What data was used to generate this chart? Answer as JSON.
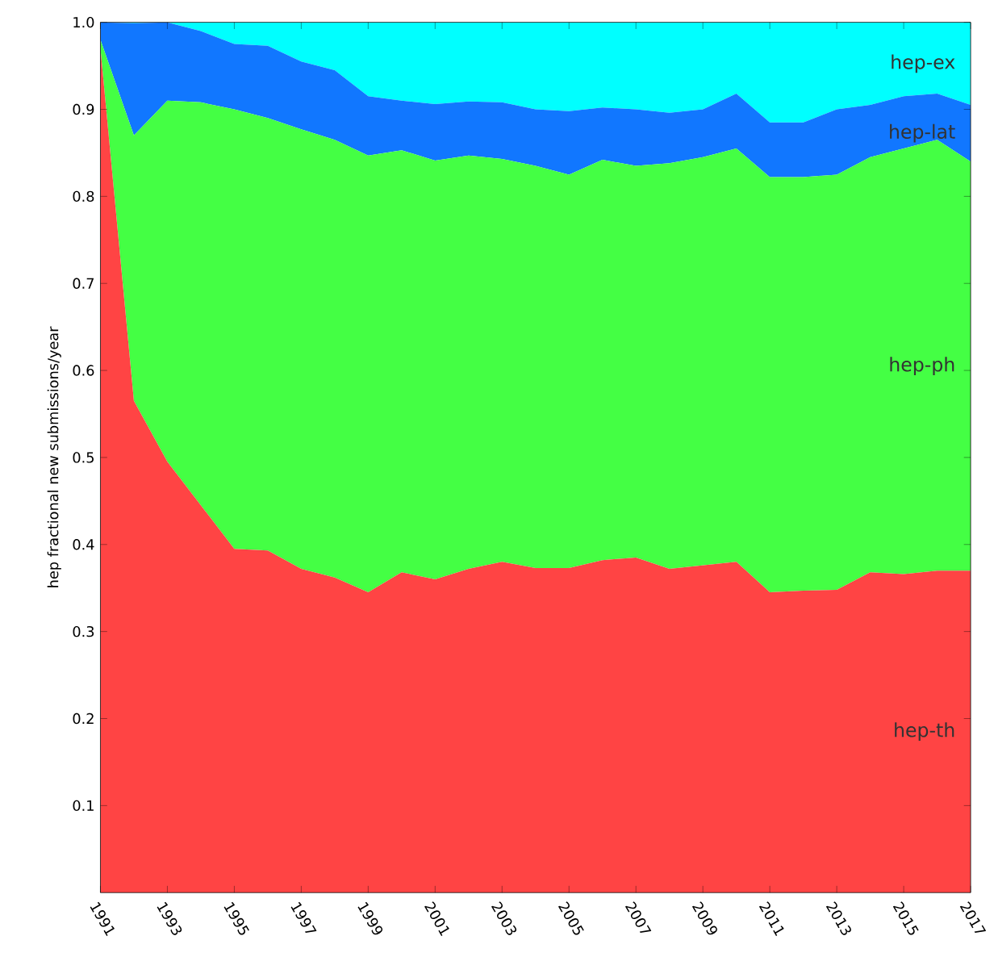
{
  "chart_data": {
    "type": "area",
    "stacked": true,
    "ylabel": "hep fractional new submissions/year",
    "x": [
      1991,
      1992,
      1993,
      1994,
      1995,
      1996,
      1997,
      1998,
      1999,
      2000,
      2001,
      2002,
      2003,
      2004,
      2005,
      2006,
      2007,
      2008,
      2009,
      2010,
      2011,
      2012,
      2013,
      2014,
      2015,
      2016,
      2017
    ],
    "xlim": [
      1991,
      2017
    ],
    "xticks": [
      1991,
      1993,
      1995,
      1997,
      1999,
      2001,
      2003,
      2005,
      2007,
      2009,
      2011,
      2013,
      2015,
      2017
    ],
    "ylim": [
      0,
      1
    ],
    "yticks": [
      {
        "value": 0.1,
        "label": "0.1"
      },
      {
        "value": 0.2,
        "label": "0.2"
      },
      {
        "value": 0.3,
        "label": "0.3"
      },
      {
        "value": 0.4,
        "label": "0.4"
      },
      {
        "value": 0.5,
        "label": "0.5"
      },
      {
        "value": 0.6,
        "label": "0.6"
      },
      {
        "value": 0.7,
        "label": "0.7"
      },
      {
        "value": 0.8,
        "label": "0.8"
      },
      {
        "value": 0.9,
        "label": "0.9"
      },
      {
        "value": 1,
        "label": "1.0"
      }
    ],
    "legend": false,
    "series": [
      {
        "name": "hep-th",
        "color": "#ff4444",
        "values": [
          0.97,
          0.565,
          0.495,
          0.445,
          0.395,
          0.393,
          0.372,
          0.362,
          0.345,
          0.368,
          0.36,
          0.372,
          0.38,
          0.373,
          0.373,
          0.382,
          0.385,
          0.372,
          0.376,
          0.38,
          0.345,
          0.347,
          0.348,
          0.368,
          0.366,
          0.37,
          0.37
        ]
      },
      {
        "name": "hep-ph",
        "color": "#44ff44",
        "values": [
          0.01,
          0.305,
          0.415,
          0.463,
          0.505,
          0.497,
          0.505,
          0.503,
          0.502,
          0.485,
          0.481,
          0.475,
          0.463,
          0.462,
          0.452,
          0.46,
          0.45,
          0.466,
          0.469,
          0.475,
          0.477,
          0.475,
          0.477,
          0.477,
          0.489,
          0.495,
          0.47
        ]
      },
      {
        "name": "hep-lat",
        "color": "#1177ff",
        "values": [
          0.02,
          0.129,
          0.09,
          0.082,
          0.075,
          0.083,
          0.078,
          0.08,
          0.068,
          0.057,
          0.065,
          0.062,
          0.065,
          0.065,
          0.073,
          0.06,
          0.065,
          0.058,
          0.055,
          0.063,
          0.063,
          0.063,
          0.075,
          0.06,
          0.06,
          0.053,
          0.065
        ]
      },
      {
        "name": "hep-ex",
        "color": "#00ffff",
        "values": [
          0,
          0.001,
          0,
          0.01,
          0.025,
          0.027,
          0.045,
          0.055,
          0.085,
          0.09,
          0.094,
          0.091,
          0.092,
          0.1,
          0.102,
          0.098,
          0.1,
          0.104,
          0.1,
          0.082,
          0.115,
          0.115,
          0.1,
          0.095,
          0.085,
          0.082,
          0.095
        ]
      }
    ]
  }
}
